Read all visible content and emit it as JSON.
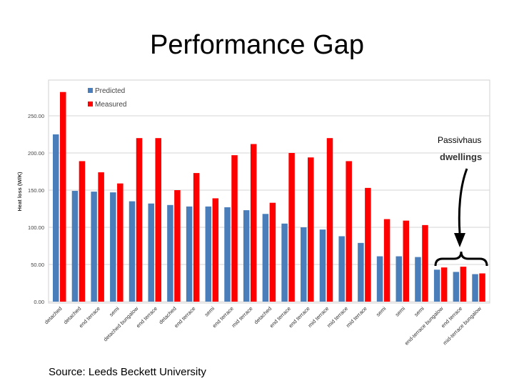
{
  "slide": {
    "title": "Performance Gap",
    "source": "Source: Leeds Beckett University"
  },
  "chart_data": {
    "type": "bar",
    "ylabel": "Heat loss (W/K)",
    "ylim": [
      0,
      300
    ],
    "yticks": [
      "0.00",
      "50.00",
      "100.00",
      "150.00",
      "200.00",
      "250.00"
    ],
    "grid": true,
    "legend_position": "top-left",
    "categories": [
      "detached",
      "detached",
      "end terrace",
      "semi",
      "detached bungalow",
      "end terrace",
      "detached",
      "end terrace",
      "semi",
      "end terrace",
      "mid terrace",
      "detached",
      "end terrace",
      "end terrace",
      "mid terrace",
      "mid terrace",
      "mid terrace",
      "semi",
      "semi",
      "semi",
      "end-terrace bungalow",
      "end terrace",
      "mid-terrace bungalow"
    ],
    "series": [
      {
        "name": "Predicted",
        "color": "#4a7ebb",
        "values": [
          225,
          149,
          148,
          147,
          135,
          132,
          130,
          128,
          128,
          127,
          123,
          118,
          105,
          100,
          97,
          88,
          79,
          61,
          61,
          60,
          43,
          40,
          37
        ]
      },
      {
        "name": "Measured",
        "color": "#ff0000",
        "values": [
          282,
          189,
          174,
          159,
          220,
          220,
          150,
          173,
          139,
          197,
          212,
          133,
          200,
          194,
          220,
          189,
          153,
          111,
          109,
          103,
          46,
          47,
          38
        ]
      }
    ],
    "annotations": {
      "line1": "Passivhaus",
      "line2": "dwellings"
    }
  }
}
